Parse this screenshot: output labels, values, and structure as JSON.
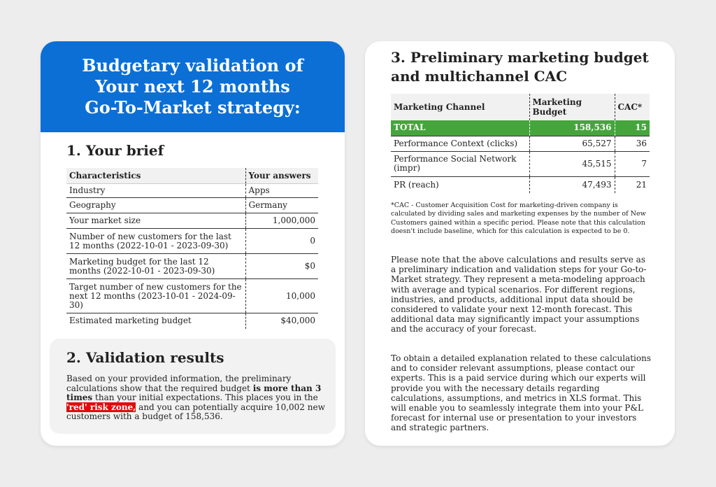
{
  "header": {
    "line1": "Budgetary validation of",
    "line2": "Your next 12 months",
    "line3": "Go-To-Market strategy:"
  },
  "brief": {
    "title": "1. Your brief",
    "col1": "Characteristics",
    "col2": "Your answers",
    "rows": [
      {
        "label": "Industry",
        "value": "Apps"
      },
      {
        "label": "Geography",
        "value": "Germany"
      },
      {
        "label": "Your market size",
        "value": "1,000,000"
      },
      {
        "label": "Number of new customers for the last 12 months (2022-10-01 - 2023-09-30)",
        "value": "0"
      },
      {
        "label": "Marketing budget for the last 12 months (2022-10-01 - 2023-09-30)",
        "value": "$0"
      },
      {
        "label": "Target number of new customers for the next 12 months (2023-10-01 - 2024-09-30)",
        "value": "10,000"
      },
      {
        "label": "Estimated marketing budget",
        "value": "$40,000"
      }
    ]
  },
  "validation": {
    "title": "2. Validation results",
    "text_a": "Based on your provided information, the preliminary calculations show that the required budget ",
    "text_b": "is more than 3 times",
    "text_c": " than your initial expectations. This places you in the ",
    "risk": "'red' risk zone,",
    "text_d": " and you can potentially acquire 10,002 new customers with a budget of 158,536."
  },
  "cac": {
    "title": "3. Preliminary marketing budget and multichannel CAC",
    "col1": "Marketing Channel",
    "col2": "Marketing Budget",
    "col3": "CAC*",
    "total": {
      "label": "TOTAL",
      "budget": "158,536",
      "cac": "15"
    },
    "rows": [
      {
        "label": "Performance Context (clicks)",
        "budget": "65,527",
        "cac": "36"
      },
      {
        "label": "Performance Social Network (impr)",
        "budget": "45,515",
        "cac": "7"
      },
      {
        "label": "PR (reach)",
        "budget": "47,493",
        "cac": "21"
      }
    ],
    "note": "*CAC - Customer Acquisition Cost for marketing-driven company is calculated by dividing sales and marketing expenses by the number of New Customers gained within a specific period. Please note that this calculation doesn't include baseline, which for this calculation is expected to be 0.",
    "para1": "Please note that the above calculations and results serve as a preliminary indication and validation steps for your Go-to-Market strategy. They represent a meta-modeling approach with average and typical scenarios. For different regions, industries, and products, additional input data should be considered to validate your next 12-month forecast. This additional data may significantly impact your assumptions and the accuracy of your forecast.",
    "para2": "To obtain a detailed explanation related to these calculations and to consider relevant assumptions, please contact our experts. This is a paid service during which our experts will provide you with the necessary details regarding calculations, assumptions, and metrics in XLS format. This will enable you to seamlessly integrate them into your P&L forecast for internal use or presentation to your investors and strategic partners."
  },
  "colors": {
    "header_blue": "#0b6fd6",
    "total_green": "#45a53c",
    "risk_red": "#e20a0a"
  }
}
